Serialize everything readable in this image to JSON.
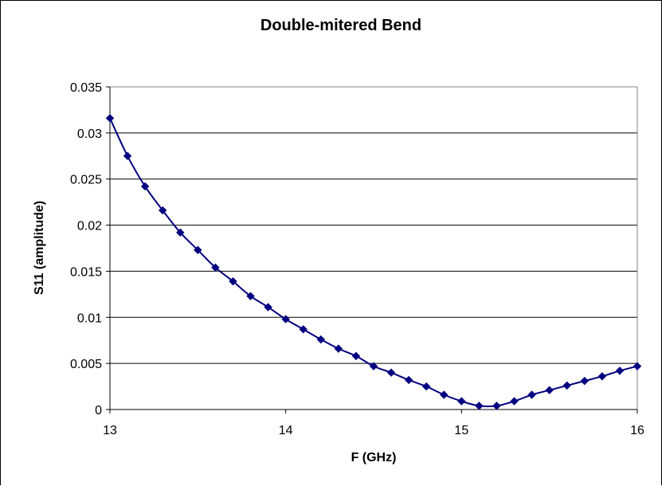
{
  "chart_data": {
    "type": "line",
    "title": "Double-mitered Bend",
    "xlabel": "F (GHz)",
    "ylabel": "S11  (amplitude)",
    "xlim": [
      13,
      16
    ],
    "ylim": [
      0,
      0.035
    ],
    "x_ticks": [
      "13",
      "14",
      "15",
      "16"
    ],
    "y_ticks": [
      "0",
      "0.005",
      "0.01",
      "0.015",
      "0.02",
      "0.025",
      "0.03",
      "0.035"
    ],
    "grid": "horizontal",
    "legend": "none",
    "line_color": "#000080",
    "marker": "diamond",
    "series": [
      {
        "x": [
          13.0,
          13.1,
          13.2,
          13.3,
          13.4,
          13.5,
          13.6,
          13.7,
          13.8,
          13.9,
          14.0,
          14.1,
          14.2,
          14.3,
          14.4,
          14.5,
          14.6,
          14.7,
          14.8,
          14.9,
          15.0,
          15.1,
          15.2,
          15.3,
          15.4,
          15.5,
          15.6,
          15.7,
          15.8,
          15.9,
          16.0
        ],
        "values": [
          0.0316,
          0.0275,
          0.0242,
          0.0216,
          0.0192,
          0.0173,
          0.0154,
          0.0139,
          0.0123,
          0.0111,
          0.0098,
          0.0087,
          0.0076,
          0.0066,
          0.0058,
          0.0047,
          0.004,
          0.0032,
          0.0025,
          0.0016,
          0.0009,
          0.0004,
          0.0004,
          0.0009,
          0.0016,
          0.0021,
          0.0026,
          0.0031,
          0.0036,
          0.0042,
          0.0047
        ]
      }
    ]
  }
}
